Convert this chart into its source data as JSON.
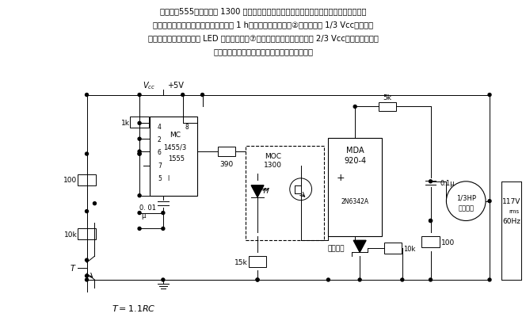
{
  "bg_color": "#ffffff",
  "line_color": "#000000",
  "text_color": "#000000",
  "header": [
    "将定时器555、光隔离器 1300 和桥式触发三端双向可控硅开关组合起来，在控制开关短时",
    "按下后使交流马达或者其它装置通电达 1 h。开关闭合后定时器②的电压降至 1/3 Vcc以下，使",
    "定时器输出变高，从而使 LED 导通。同时，⑦的电容开始充电，充电充到 2/3 Vcc以前，输出仍然",
    "为高电平；当输出恢复到低电平时，马达关掉。"
  ]
}
